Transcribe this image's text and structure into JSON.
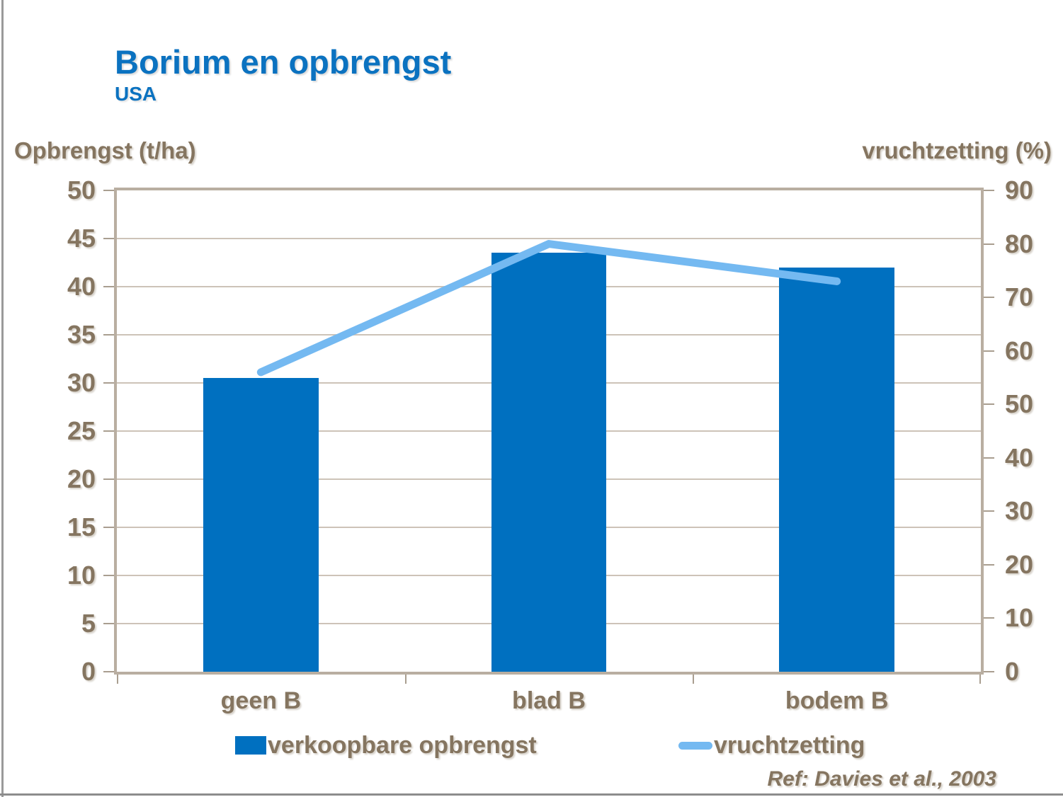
{
  "page": {
    "title": "Borium en opbrengst",
    "subtitle": "USA",
    "reference": "Ref: Davies et al., 2003"
  },
  "chart_data": {
    "type": "bar",
    "subtype": "dual-axis column chart with line overlay",
    "categories": [
      "geen B",
      "blad B",
      "bodem B"
    ],
    "series": [
      {
        "name": "verkoopbare opbrengst",
        "type": "bar",
        "axis": "left",
        "values": [
          30.5,
          43.5,
          42
        ],
        "color": "#0070C0"
      },
      {
        "name": "vruchtzetting",
        "type": "line",
        "axis": "right",
        "values": [
          56,
          80,
          73
        ],
        "color": "#74B9F1"
      }
    ],
    "left_axis": {
      "title": "Opbrengst (t/ha)",
      "min": 0,
      "max": 50,
      "step": 5
    },
    "right_axis": {
      "title": "vruchtzetting (%)",
      "min": 0,
      "max": 90,
      "step": 10
    },
    "grid": "horizontal gridlines every 5 t/ha",
    "legend_position": "bottom"
  },
  "colors": {
    "title_blue": "#0B72C0",
    "bar_blue": "#0070C0",
    "line_light_blue": "#74B9F1",
    "text_brown": "#857560",
    "grid_tan": "#CDC3B8",
    "frame_tan": "#B9AEA1",
    "slide_border_gray": "#9A9A9A"
  }
}
